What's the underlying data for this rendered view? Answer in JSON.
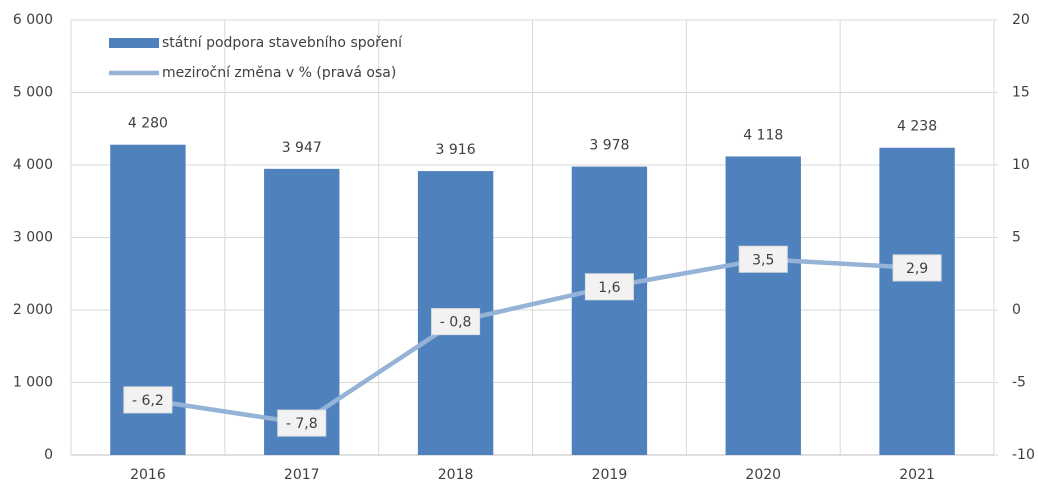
{
  "chart_data": {
    "type": "bar",
    "categories": [
      "2016",
      "2017",
      "2018",
      "2019",
      "2020",
      "2021"
    ],
    "series": [
      {
        "name": "státní podpora stavebního spoření",
        "type": "bar",
        "color": "#4f81bd",
        "values": [
          4280,
          3947,
          3916,
          3978,
          4118,
          4238
        ],
        "value_labels": [
          "4 280",
          "3 947",
          "3 916",
          "3 978",
          "4 118",
          "4 238"
        ]
      },
      {
        "name": "meziroční změna v % (pravá osa)",
        "type": "line",
        "axis": "y2",
        "color": "#95b3d7",
        "values": [
          -6.2,
          -7.8,
          -0.8,
          1.6,
          3.5,
          2.9
        ],
        "value_labels": [
          "- 6,2",
          "- 7,8",
          "- 0,8",
          "1,6",
          "3,5",
          "2,9"
        ]
      }
    ],
    "ylim": [
      0,
      6000
    ],
    "yticks": [
      0,
      {
        "value": 1000,
        "label": "1 000"
      },
      {
        "value": 2000,
        "label": "2 000"
      },
      {
        "value": 3000,
        "label": "3 000"
      },
      {
        "value": 4000,
        "label": "4 000"
      },
      {
        "value": 5000,
        "label": "5 000"
      },
      {
        "value": 6000,
        "label": "6 000"
      }
    ],
    "y2lim": [
      -10,
      20
    ],
    "y2ticks": [
      -10,
      -5,
      0,
      5,
      10,
      15,
      20
    ],
    "grid": true,
    "legend": "top-left"
  }
}
